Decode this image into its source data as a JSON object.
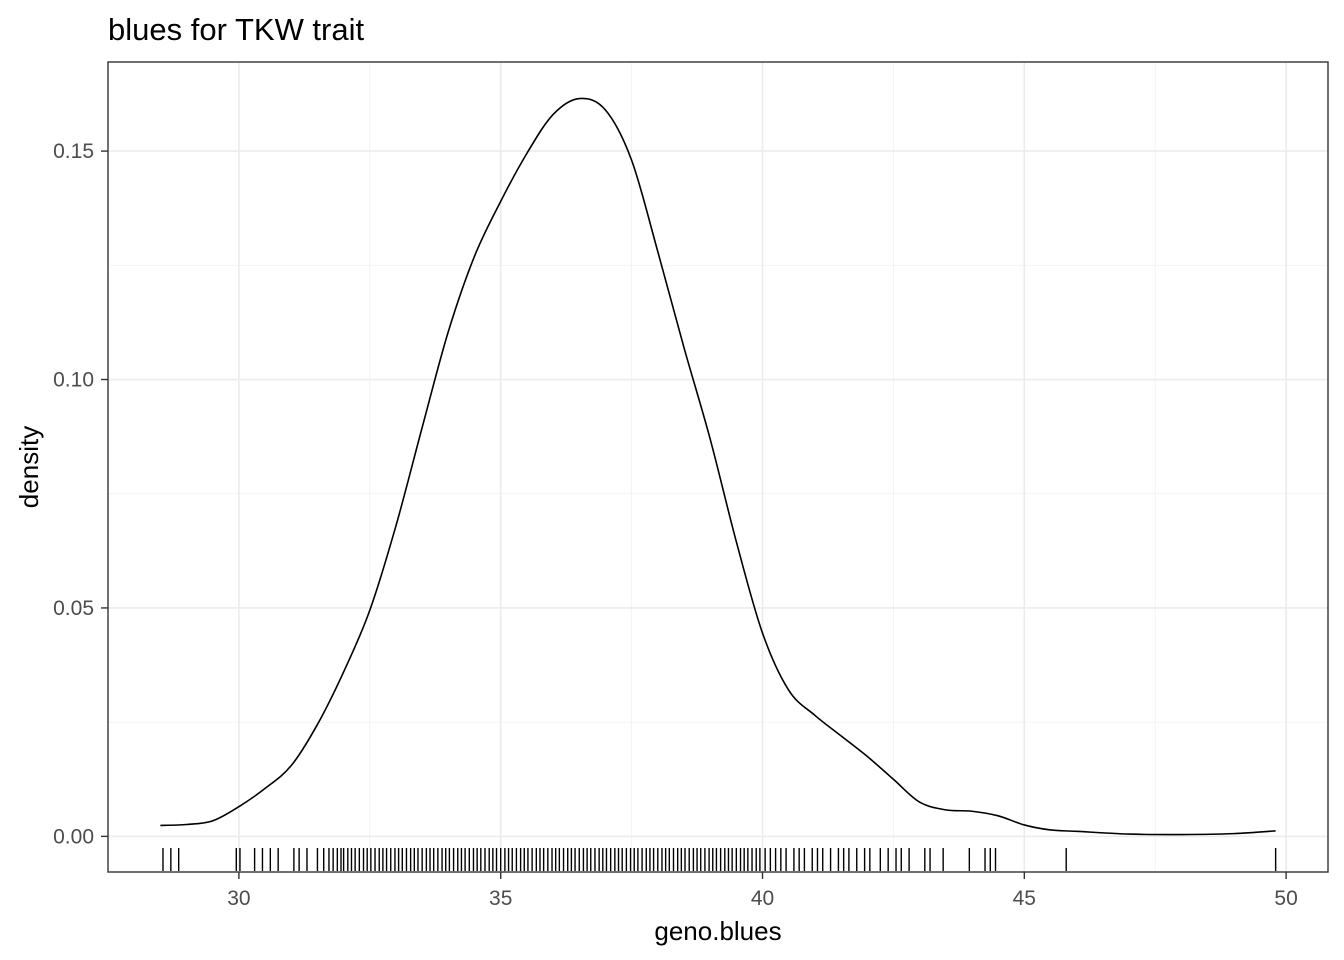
{
  "chart_data": {
    "type": "line",
    "title": "blues for TKW trait",
    "xlabel": "geno.blues",
    "ylabel": "density",
    "xlim": [
      27.5,
      50.8
    ],
    "ylim": [
      -0.0078,
      0.1695
    ],
    "x_ticks": [
      30,
      35,
      40,
      45,
      50
    ],
    "x_tick_labels": [
      "30",
      "35",
      "40",
      "45",
      "50"
    ],
    "y_ticks": [
      0.0,
      0.05,
      0.1,
      0.15
    ],
    "y_tick_labels": [
      "0.00",
      "0.05",
      "0.10",
      "0.15"
    ],
    "grid": true,
    "legend": "none",
    "series": [
      {
        "x": [
          28.5,
          29.0,
          29.5,
          30.0,
          30.5,
          31.0,
          31.5,
          32.0,
          32.5,
          33.0,
          33.5,
          34.0,
          34.5,
          35.0,
          35.5,
          36.0,
          36.5,
          37.0,
          37.5,
          38.0,
          38.5,
          39.0,
          39.5,
          40.0,
          40.5,
          41.0,
          41.5,
          42.0,
          42.5,
          43.0,
          43.5,
          44.0,
          44.5,
          45.0,
          45.5,
          46.0,
          47.0,
          48.0,
          49.0,
          49.8
        ],
        "y": [
          0.0024,
          0.0026,
          0.0034,
          0.0065,
          0.0105,
          0.0155,
          0.0245,
          0.036,
          0.0495,
          0.068,
          0.0895,
          0.1105,
          0.127,
          0.139,
          0.1495,
          0.158,
          0.1615,
          0.159,
          0.148,
          0.128,
          0.107,
          0.087,
          0.0645,
          0.0445,
          0.032,
          0.0265,
          0.022,
          0.0175,
          0.0125,
          0.0075,
          0.0058,
          0.0055,
          0.0045,
          0.0025,
          0.0014,
          0.0011,
          0.0005,
          0.0004,
          0.0006,
          0.0012
        ]
      }
    ],
    "rug": [
      28.55,
      28.7,
      28.85,
      29.95,
      30.02,
      30.3,
      30.45,
      30.6,
      30.75,
      31.05,
      31.15,
      31.3,
      31.5,
      31.62,
      31.72,
      31.8,
      31.88,
      31.95,
      32.0,
      32.08,
      32.15,
      32.22,
      32.3,
      32.38,
      32.45,
      32.52,
      32.6,
      32.68,
      32.75,
      32.82,
      32.9,
      32.98,
      33.05,
      33.12,
      33.2,
      33.28,
      33.35,
      33.42,
      33.5,
      33.58,
      33.65,
      33.72,
      33.8,
      33.88,
      33.95,
      34.02,
      34.1,
      34.18,
      34.25,
      34.32,
      34.4,
      34.48,
      34.55,
      34.62,
      34.7,
      34.78,
      34.85,
      34.92,
      35.0,
      35.08,
      35.15,
      35.22,
      35.3,
      35.38,
      35.45,
      35.52,
      35.6,
      35.68,
      35.75,
      35.82,
      35.9,
      35.98,
      36.05,
      36.12,
      36.2,
      36.28,
      36.35,
      36.42,
      36.5,
      36.58,
      36.65,
      36.72,
      36.8,
      36.88,
      36.95,
      37.02,
      37.1,
      37.18,
      37.25,
      37.32,
      37.4,
      37.48,
      37.55,
      37.62,
      37.7,
      37.78,
      37.85,
      37.92,
      38.0,
      38.08,
      38.15,
      38.22,
      38.3,
      38.38,
      38.45,
      38.52,
      38.6,
      38.68,
      38.75,
      38.82,
      38.9,
      38.98,
      39.05,
      39.12,
      39.2,
      39.28,
      39.35,
      39.42,
      39.5,
      39.58,
      39.65,
      39.72,
      39.8,
      39.88,
      39.95,
      40.05,
      40.15,
      40.25,
      40.35,
      40.45,
      40.6,
      40.7,
      40.8,
      40.95,
      41.05,
      41.15,
      41.3,
      41.45,
      41.55,
      41.65,
      41.8,
      41.95,
      42.05,
      42.25,
      42.4,
      42.55,
      42.65,
      42.8,
      43.1,
      43.2,
      43.45,
      43.95,
      44.25,
      44.35,
      44.45,
      45.8,
      49.8
    ]
  }
}
